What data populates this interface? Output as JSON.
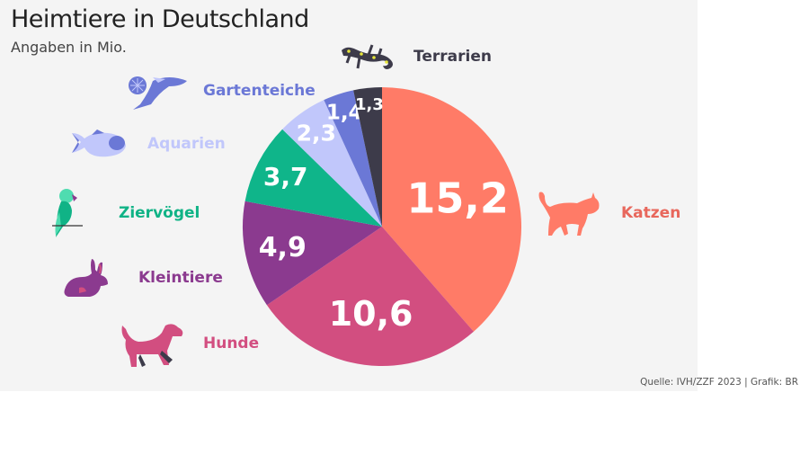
{
  "header": {
    "title": "Heimtiere in Deutschland",
    "subtitle": "Angaben in Mio."
  },
  "footer": {
    "source": "Quelle: IVH/ZZF 2023 | Grafik: BR"
  },
  "chart_data": {
    "type": "pie",
    "title": "Heimtiere in Deutschland",
    "subtitle": "Angaben in Mio.",
    "unit": "Mio.",
    "start": "top, clockwise",
    "slices": [
      {
        "label": "Katzen",
        "value": 15.2,
        "display": "15,2",
        "color": "#ff7b67",
        "icon": "cat-icon"
      },
      {
        "label": "Hunde",
        "value": 10.6,
        "display": "10,6",
        "color": "#d24e80",
        "icon": "dog-icon"
      },
      {
        "label": "Kleintiere",
        "value": 4.9,
        "display": "4,9",
        "color": "#8b3a8f",
        "icon": "rabbit-icon"
      },
      {
        "label": "Ziervögel",
        "value": 3.7,
        "display": "3,7",
        "color": "#0fb58a",
        "icon": "parrot-icon"
      },
      {
        "label": "Aquarien",
        "value": 2.3,
        "display": "2,3",
        "color": "#c1c7fb",
        "icon": "fish-icon"
      },
      {
        "label": "Gartenteiche",
        "value": 1.4,
        "display": "1,4",
        "color": "#6b78d6",
        "icon": "koi-icon"
      },
      {
        "label": "Terrarien",
        "value": 1.3,
        "display": "1,3",
        "color": "#3d3b4a",
        "icon": "salamander-icon"
      }
    ],
    "label_colors": {
      "Katzen": "#e8675c",
      "Hunde": "#d24e80",
      "Kleintiere": "#8b3a8f",
      "Ziervögel": "#10b386",
      "Aquarien": "#c1c7fb",
      "Gartenteiche": "#6b78d6",
      "Terrarien": "#3d3b4a"
    }
  }
}
